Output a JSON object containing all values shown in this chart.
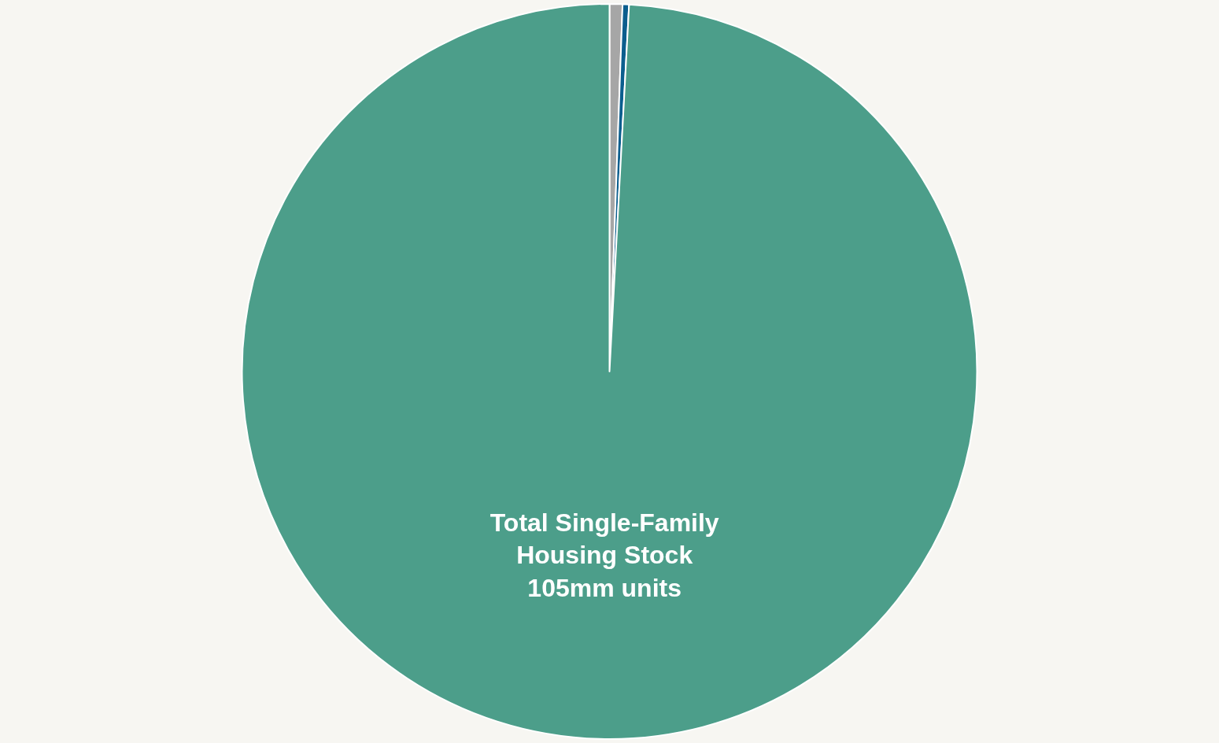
{
  "chart_data": {
    "type": "pie",
    "categories": [
      null,
      null,
      "Total Single-Family\nHousing Stock"
    ],
    "values": [
      0.6,
      0.3,
      105
    ],
    "value_labels": [
      null,
      null,
      "105mm units"
    ],
    "colors": [
      "#a6a6a6",
      "#0b5e8e",
      "#4c9e8a"
    ],
    "legend": false
  }
}
